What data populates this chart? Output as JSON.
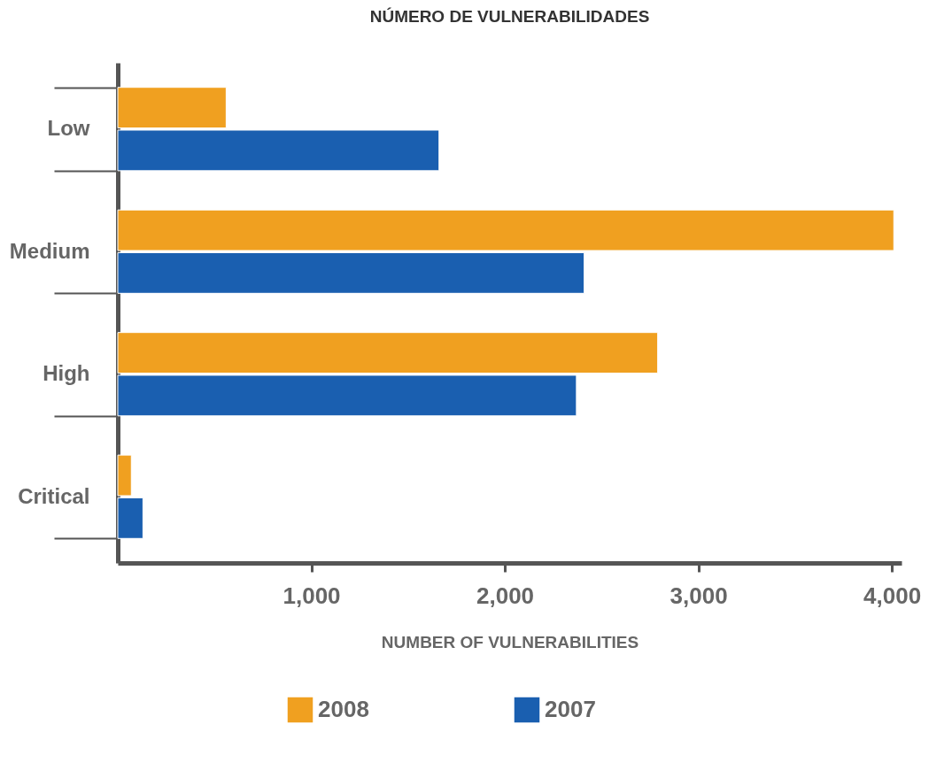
{
  "chart_data": {
    "type": "bar",
    "orientation": "horizontal",
    "title": "NÚMERO DE VULNERABILIDADES",
    "xlabel": "NUMBER OF VULNERABILITIES",
    "categories": [
      "Low",
      "Medium",
      "High",
      "Critical"
    ],
    "series": [
      {
        "name": "2008",
        "color": "#f0a020",
        "values": [
          560,
          4010,
          2790,
          70
        ]
      },
      {
        "name": "2007",
        "color": "#1a5fb0",
        "values": [
          1660,
          2410,
          2370,
          130
        ]
      }
    ],
    "xlim": [
      0,
      4050
    ],
    "xticks": [
      {
        "value": 1000,
        "label": "1,000"
      },
      {
        "value": 2000,
        "label": "2,000"
      },
      {
        "value": 3000,
        "label": "3,000"
      },
      {
        "value": 4000,
        "label": "4,000"
      }
    ],
    "grid": false,
    "legend": "bottom"
  }
}
